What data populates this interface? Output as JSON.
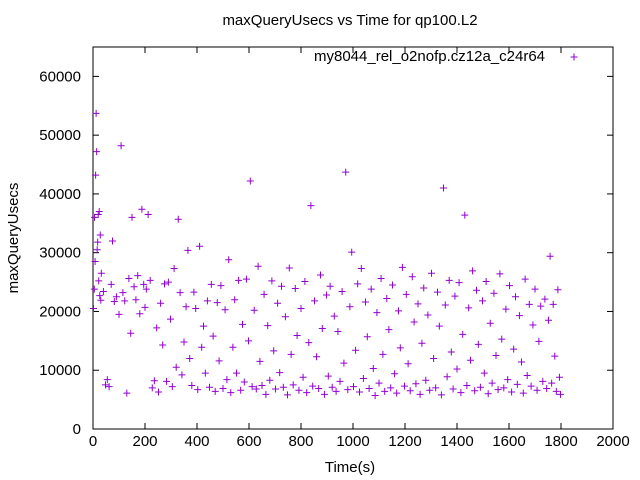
{
  "chart_data": {
    "type": "scatter",
    "title": "maxQueryUsecs vs Time for qp100.L2",
    "xlabel": "Time(s)",
    "ylabel": "maxQueryUsecs",
    "xlim": [
      0,
      2000
    ],
    "ylim": [
      0,
      65000
    ],
    "xticks": [
      "0",
      "200",
      "400",
      "600",
      "800",
      "1000",
      "1200",
      "1400",
      "1600",
      "1800",
      "2000"
    ],
    "yticks": [
      "0",
      "10000",
      "20000",
      "30000",
      "40000",
      "50000",
      "60000"
    ],
    "grid": false,
    "legend_position": "top-right",
    "marker": "plus",
    "series": [
      {
        "name": "my8044_rel_o2nofp.cz12a_c24r64",
        "color": "#9400d3",
        "points": [
          [
            2,
            20500
          ],
          [
            5,
            23800
          ],
          [
            6,
            36000
          ],
          [
            8,
            28500
          ],
          [
            10,
            43200
          ],
          [
            12,
            53700
          ],
          [
            14,
            47200
          ],
          [
            16,
            30500
          ],
          [
            18,
            31800
          ],
          [
            20,
            36500
          ],
          [
            22,
            25200
          ],
          [
            24,
            37000
          ],
          [
            26,
            22700
          ],
          [
            28,
            33000
          ],
          [
            30,
            21900
          ],
          [
            32,
            26500
          ],
          [
            40,
            23400
          ],
          [
            48,
            7500
          ],
          [
            55,
            8400
          ],
          [
            62,
            7200
          ],
          [
            70,
            24600
          ],
          [
            75,
            32000
          ],
          [
            82,
            21700
          ],
          [
            90,
            22500
          ],
          [
            100,
            19500
          ],
          [
            108,
            48200
          ],
          [
            115,
            23200
          ],
          [
            122,
            21800
          ],
          [
            130,
            6100
          ],
          [
            138,
            25600
          ],
          [
            145,
            16300
          ],
          [
            150,
            36000
          ],
          [
            158,
            24200
          ],
          [
            165,
            22000
          ],
          [
            172,
            26100
          ],
          [
            180,
            19600
          ],
          [
            188,
            37400
          ],
          [
            195,
            24600
          ],
          [
            200,
            20700
          ],
          [
            205,
            23800
          ],
          [
            212,
            36500
          ],
          [
            220,
            25300
          ],
          [
            228,
            7000
          ],
          [
            236,
            8200
          ],
          [
            245,
            17200
          ],
          [
            252,
            6300
          ],
          [
            260,
            21400
          ],
          [
            268,
            14300
          ],
          [
            275,
            24700
          ],
          [
            283,
            8100
          ],
          [
            290,
            25000
          ],
          [
            298,
            18700
          ],
          [
            305,
            7200
          ],
          [
            312,
            27300
          ],
          [
            320,
            10500
          ],
          [
            328,
            35700
          ],
          [
            335,
            23200
          ],
          [
            342,
            9200
          ],
          [
            350,
            14800
          ],
          [
            358,
            20800
          ],
          [
            365,
            30400
          ],
          [
            372,
            12000
          ],
          [
            380,
            7400
          ],
          [
            388,
            23300
          ],
          [
            395,
            20500
          ],
          [
            403,
            6700
          ],
          [
            410,
            31100
          ],
          [
            418,
            13900
          ],
          [
            425,
            17500
          ],
          [
            432,
            9500
          ],
          [
            440,
            21800
          ],
          [
            448,
            7100
          ],
          [
            455,
            24600
          ],
          [
            462,
            15800
          ],
          [
            470,
            6400
          ],
          [
            478,
            21500
          ],
          [
            485,
            11600
          ],
          [
            492,
            24400
          ],
          [
            500,
            6900
          ],
          [
            508,
            20300
          ],
          [
            515,
            8400
          ],
          [
            522,
            28800
          ],
          [
            530,
            6200
          ],
          [
            538,
            13900
          ],
          [
            545,
            22000
          ],
          [
            552,
            9500
          ],
          [
            560,
            25300
          ],
          [
            568,
            6600
          ],
          [
            575,
            17800
          ],
          [
            582,
            8000
          ],
          [
            590,
            25500
          ],
          [
            598,
            15000
          ],
          [
            605,
            42200
          ],
          [
            612,
            7200
          ],
          [
            620,
            20200
          ],
          [
            628,
            6800
          ],
          [
            635,
            27700
          ],
          [
            642,
            11500
          ],
          [
            650,
            7400
          ],
          [
            658,
            22900
          ],
          [
            665,
            5900
          ],
          [
            672,
            17600
          ],
          [
            680,
            8300
          ],
          [
            688,
            25200
          ],
          [
            695,
            13300
          ],
          [
            702,
            6800
          ],
          [
            710,
            21400
          ],
          [
            718,
            9600
          ],
          [
            725,
            24300
          ],
          [
            732,
            7100
          ],
          [
            740,
            19100
          ],
          [
            748,
            5800
          ],
          [
            755,
            27400
          ],
          [
            762,
            12700
          ],
          [
            770,
            7500
          ],
          [
            778,
            23900
          ],
          [
            785,
            15900
          ],
          [
            792,
            6600
          ],
          [
            800,
            20500
          ],
          [
            808,
            8800
          ],
          [
            815,
            25100
          ],
          [
            822,
            6200
          ],
          [
            830,
            14700
          ],
          [
            838,
            38000
          ],
          [
            845,
            7300
          ],
          [
            852,
            21800
          ],
          [
            860,
            12300
          ],
          [
            868,
            6900
          ],
          [
            875,
            26200
          ],
          [
            882,
            17100
          ],
          [
            890,
            5900
          ],
          [
            898,
            22800
          ],
          [
            905,
            9000
          ],
          [
            912,
            24300
          ],
          [
            920,
            7100
          ],
          [
            928,
            19200
          ],
          [
            935,
            6400
          ],
          [
            942,
            16600
          ],
          [
            950,
            8100
          ],
          [
            958,
            23400
          ],
          [
            965,
            11200
          ],
          [
            972,
            43700
          ],
          [
            980,
            6700
          ],
          [
            988,
            20800
          ],
          [
            995,
            30100
          ],
          [
            1002,
            7200
          ],
          [
            1010,
            13400
          ],
          [
            1018,
            24700
          ],
          [
            1025,
            6300
          ],
          [
            1032,
            27300
          ],
          [
            1040,
            8600
          ],
          [
            1048,
            21600
          ],
          [
            1055,
            15700
          ],
          [
            1062,
            6900
          ],
          [
            1070,
            23800
          ],
          [
            1078,
            10300
          ],
          [
            1085,
            5700
          ],
          [
            1092,
            19800
          ],
          [
            1100,
            7800
          ],
          [
            1108,
            25600
          ],
          [
            1115,
            12700
          ],
          [
            1122,
            6400
          ],
          [
            1130,
            22200
          ],
          [
            1138,
            16900
          ],
          [
            1145,
            7000
          ],
          [
            1152,
            24500
          ],
          [
            1160,
            9400
          ],
          [
            1168,
            6100
          ],
          [
            1175,
            20100
          ],
          [
            1182,
            13800
          ],
          [
            1190,
            27500
          ],
          [
            1198,
            7300
          ],
          [
            1205,
            22900
          ],
          [
            1212,
            11100
          ],
          [
            1220,
            6500
          ],
          [
            1228,
            25900
          ],
          [
            1235,
            18200
          ],
          [
            1242,
            7700
          ],
          [
            1250,
            21300
          ],
          [
            1258,
            5900
          ],
          [
            1265,
            14600
          ],
          [
            1272,
            24000
          ],
          [
            1280,
            8300
          ],
          [
            1288,
            19400
          ],
          [
            1295,
            6600
          ],
          [
            1302,
            26500
          ],
          [
            1310,
            12000
          ],
          [
            1318,
            7000
          ],
          [
            1325,
            23300
          ],
          [
            1332,
            17500
          ],
          [
            1340,
            5800
          ],
          [
            1348,
            41000
          ],
          [
            1355,
            21100
          ],
          [
            1362,
            8900
          ],
          [
            1370,
            25300
          ],
          [
            1378,
            13100
          ],
          [
            1385,
            6800
          ],
          [
            1392,
            22600
          ],
          [
            1400,
            10200
          ],
          [
            1408,
            24900
          ],
          [
            1415,
            6200
          ],
          [
            1422,
            16100
          ],
          [
            1430,
            36400
          ],
          [
            1438,
            7400
          ],
          [
            1445,
            20600
          ],
          [
            1452,
            11700
          ],
          [
            1460,
            26900
          ],
          [
            1468,
            6500
          ],
          [
            1475,
            23600
          ],
          [
            1482,
            14400
          ],
          [
            1490,
            7100
          ],
          [
            1498,
            21800
          ],
          [
            1505,
            9500
          ],
          [
            1512,
            25100
          ],
          [
            1520,
            6000
          ],
          [
            1528,
            18000
          ],
          [
            1535,
            7800
          ],
          [
            1542,
            23100
          ],
          [
            1550,
            12500
          ],
          [
            1558,
            6700
          ],
          [
            1565,
            26400
          ],
          [
            1572,
            15300
          ],
          [
            1580,
            7000
          ],
          [
            1588,
            20400
          ],
          [
            1595,
            8400
          ],
          [
            1602,
            24400
          ],
          [
            1610,
            6300
          ],
          [
            1618,
            13600
          ],
          [
            1625,
            22500
          ],
          [
            1632,
            7600
          ],
          [
            1640,
            19300
          ],
          [
            1648,
            11400
          ],
          [
            1655,
            6100
          ],
          [
            1662,
            25500
          ],
          [
            1670,
            9100
          ],
          [
            1678,
            21200
          ],
          [
            1685,
            7300
          ],
          [
            1692,
            17700
          ],
          [
            1700,
            23800
          ],
          [
            1708,
            6600
          ],
          [
            1715,
            14900
          ],
          [
            1722,
            20900
          ],
          [
            1730,
            8100
          ],
          [
            1738,
            22100
          ],
          [
            1745,
            6900
          ],
          [
            1752,
            18500
          ],
          [
            1758,
            29400
          ],
          [
            1764,
            7800
          ],
          [
            1770,
            21200
          ],
          [
            1776,
            12400
          ],
          [
            1782,
            6400
          ],
          [
            1788,
            23700
          ],
          [
            1794,
            8800
          ],
          [
            1798,
            5900
          ]
        ]
      }
    ]
  }
}
